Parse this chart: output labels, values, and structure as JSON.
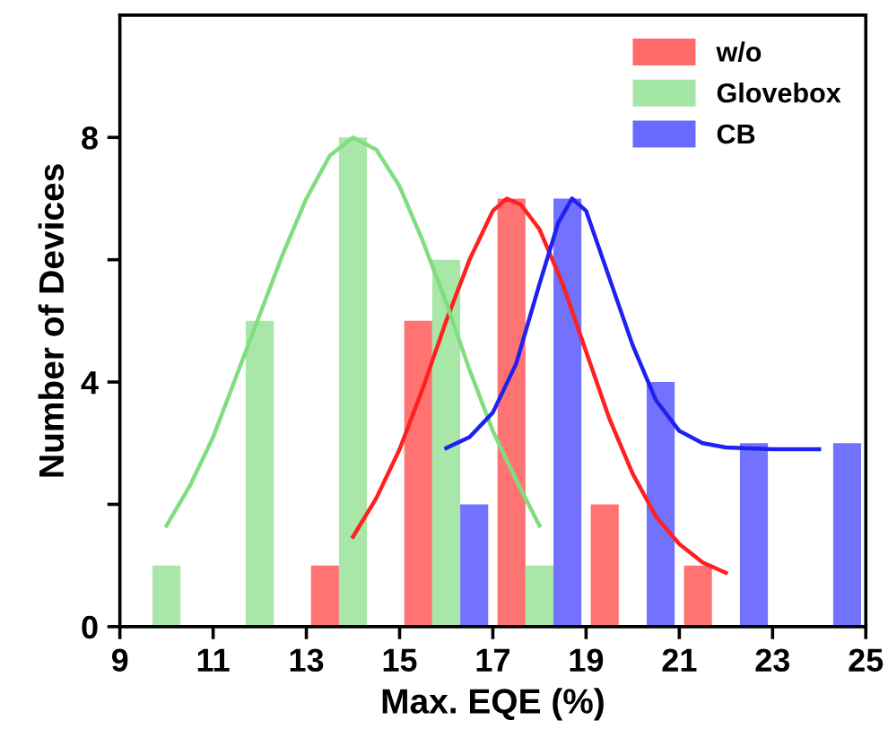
{
  "chart_data": {
    "type": "bar",
    "xlabel": "Max. EQE (%)",
    "ylabel": "Number of Devices",
    "xlim": [
      9,
      25
    ],
    "xticks": [
      9,
      11,
      13,
      15,
      17,
      19,
      21,
      23,
      25
    ],
    "ylim": [
      0,
      10
    ],
    "yticks": [
      0,
      {
        "value": 2,
        "label": null
      },
      4,
      {
        "value": 6,
        "label": null
      },
      8
    ],
    "grid": false,
    "legend": "top right",
    "series": [
      {
        "name": "w/o",
        "color": "#ff6b6b",
        "x": [
          13.4,
          15.4,
          17.4,
          19.4,
          21.4
        ],
        "values": [
          1,
          5,
          7,
          2,
          1
        ]
      },
      {
        "name": "Glovebox",
        "color": "#a3e6a3",
        "x": [
          10,
          12,
          14,
          16,
          18
        ],
        "values": [
          1,
          5,
          8,
          6,
          1
        ]
      },
      {
        "name": "CB",
        "color": "#6a6aff",
        "x": [
          16.6,
          18.6,
          20.6,
          22.6,
          24.6
        ],
        "values": [
          2,
          7,
          4,
          3,
          3
        ]
      },
      {
        "type": "line",
        "color": "#ff2020",
        "x": [
          14.0,
          14.5,
          15.0,
          15.5,
          16.0,
          16.5,
          17.0,
          17.3,
          17.6,
          18.0,
          18.5,
          19.0,
          19.5,
          20.0,
          20.5,
          21.0,
          21.5,
          22.0
        ],
        "values": [
          1.47,
          2.1,
          2.9,
          3.9,
          5.0,
          6.0,
          6.8,
          7.0,
          6.9,
          6.5,
          5.6,
          4.5,
          3.4,
          2.5,
          1.8,
          1.35,
          1.05,
          0.88
        ]
      },
      {
        "type": "line",
        "color": "#80dd80",
        "x": [
          10,
          10.5,
          11,
          11.5,
          12,
          12.5,
          13,
          13.5,
          14,
          14.5,
          15,
          15.5,
          16,
          16.5,
          17,
          17.5,
          18
        ],
        "values": [
          1.65,
          2.3,
          3.1,
          4.1,
          5.1,
          6.1,
          7.0,
          7.7,
          8.0,
          7.8,
          7.2,
          6.3,
          5.3,
          4.2,
          3.2,
          2.4,
          1.65
        ]
      },
      {
        "type": "line",
        "color": "#2020f0",
        "x": [
          16,
          16.5,
          17,
          17.5,
          18,
          18.4,
          18.7,
          19.0,
          19.5,
          20.0,
          20.5,
          21.0,
          21.5,
          22,
          23,
          24
        ],
        "values": [
          2.92,
          3.1,
          3.5,
          4.3,
          5.6,
          6.6,
          7.0,
          6.8,
          5.7,
          4.6,
          3.7,
          3.2,
          3.0,
          2.93,
          2.9,
          2.9
        ]
      }
    ]
  }
}
